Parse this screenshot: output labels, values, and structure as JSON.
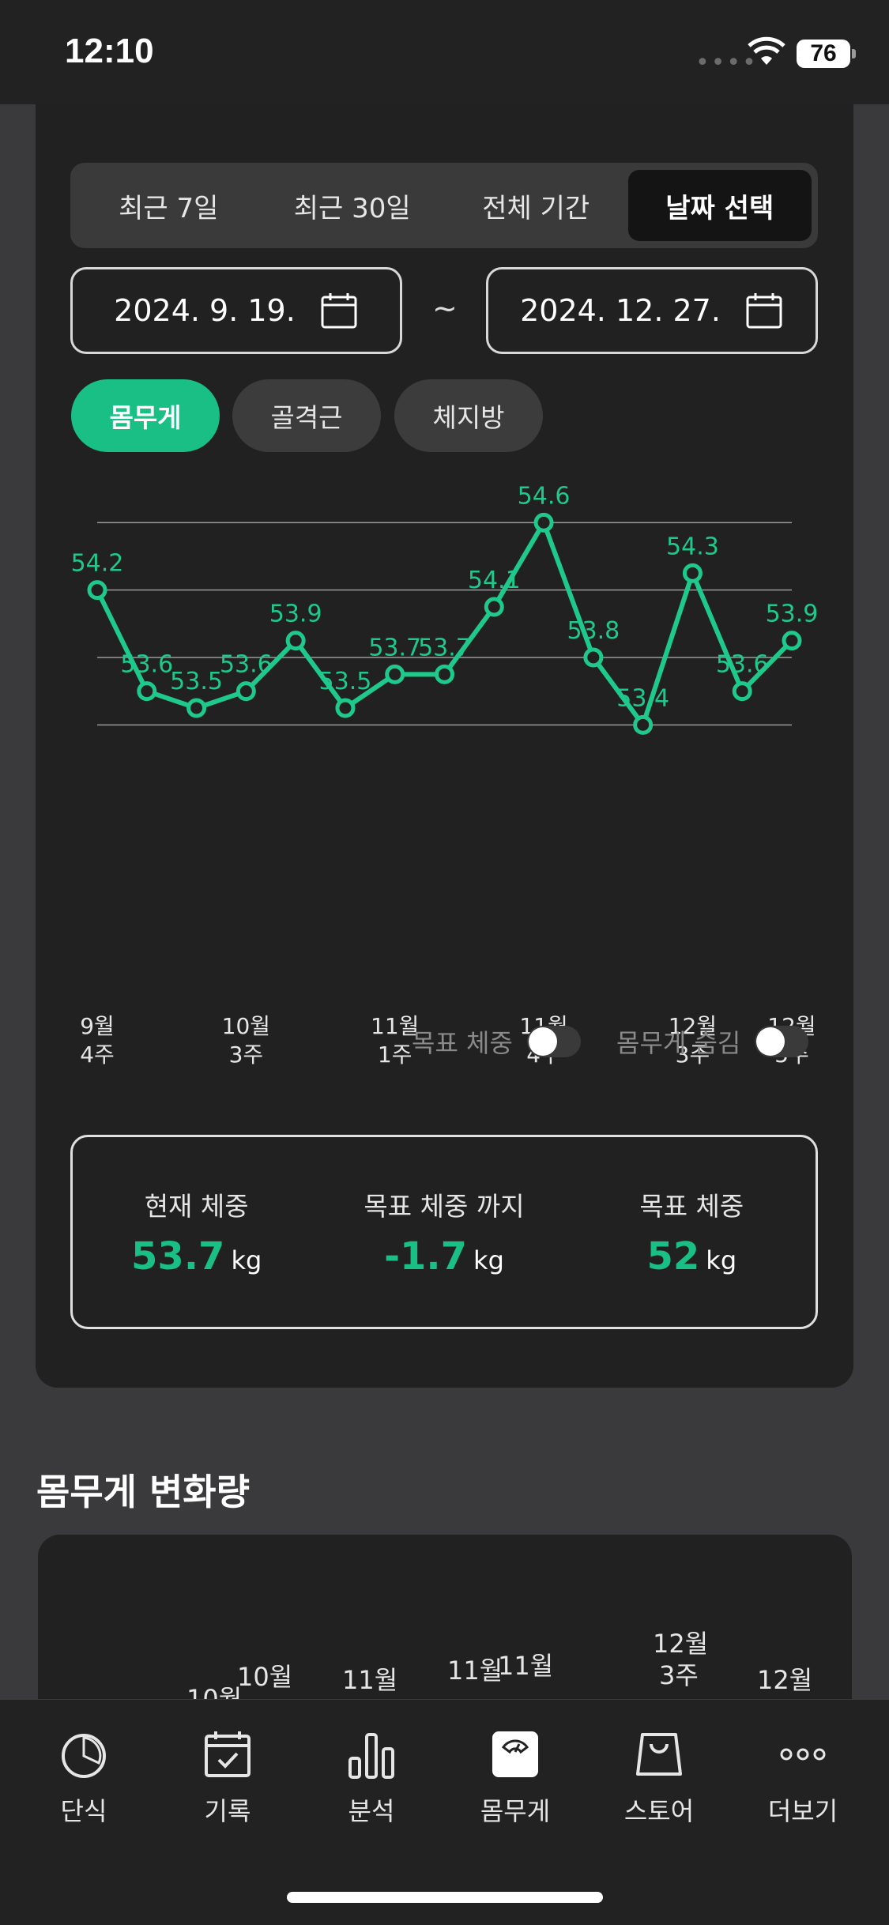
{
  "status": {
    "time": "12:10",
    "battery": "76"
  },
  "range_tabs": [
    "최근 7일",
    "최근 30일",
    "전체 기간",
    "날짜 선택"
  ],
  "range_selected": "날짜 선택",
  "date_range": {
    "start": "2024. 9. 19.",
    "separator": "~",
    "end": "2024. 12. 27."
  },
  "metric_chips": [
    "몸무게",
    "골격근",
    "체지방"
  ],
  "metric_selected": "몸무게",
  "chart_data": {
    "type": "line",
    "series": [
      {
        "values": [
          54.2,
          53.6,
          53.5,
          53.6,
          53.9,
          53.5,
          53.7,
          53.7,
          54.1,
          54.6,
          53.8,
          53.4,
          54.3,
          53.6,
          53.9
        ]
      }
    ],
    "data_labels": [
      "54.2",
      "53.6",
      "53.5",
      "53.6",
      "53.9",
      "53.5",
      "53.7",
      "53.7",
      "54.1",
      "54.6",
      "53.8",
      "53.4",
      "54.3",
      "53.6",
      "53.9"
    ],
    "x_tick_labels": [
      {
        "index": 0,
        "line1": "9월",
        "line2": "4주"
      },
      {
        "index": 3,
        "line1": "10월",
        "line2": "3주"
      },
      {
        "index": 6,
        "line1": "11월",
        "line2": "1주"
      },
      {
        "index": 9,
        "line1": "11월",
        "line2": "4주"
      },
      {
        "index": 12,
        "line1": "12월",
        "line2": "3주"
      },
      {
        "index": 14,
        "line1": "12월",
        "line2": "5주"
      }
    ],
    "ylim": [
      53.2,
      54.7
    ],
    "gridlines": [
      54.6,
      54.2,
      53.8,
      53.4
    ],
    "grid": true,
    "color": "#1fc98c"
  },
  "toggles": [
    {
      "label": "목표 체중",
      "on": false
    },
    {
      "label": "몸무게 숨김",
      "on": false
    }
  ],
  "stats": [
    {
      "label": "현재 체중",
      "value": "53.7",
      "unit": "kg"
    },
    {
      "label": "목표 체중 까지",
      "value": "-1.7",
      "unit": "kg"
    },
    {
      "label": "목표 체중",
      "value": "52",
      "unit": "kg"
    }
  ],
  "change_section": {
    "title": "몸무게 변화량",
    "labels": [
      "10월",
      "10월",
      "11월",
      "11월",
      "11월",
      "12월",
      "3주",
      "12월"
    ]
  },
  "tabbar": [
    {
      "label": "단식",
      "icon": "fasting-timer-icon"
    },
    {
      "label": "기록",
      "icon": "calendar-check-icon"
    },
    {
      "label": "분석",
      "icon": "bar-chart-icon"
    },
    {
      "label": "몸무게",
      "icon": "scale-icon",
      "active": true
    },
    {
      "label": "스토어",
      "icon": "shopping-bag-icon"
    },
    {
      "label": "더보기",
      "icon": "more-dots-icon"
    }
  ]
}
